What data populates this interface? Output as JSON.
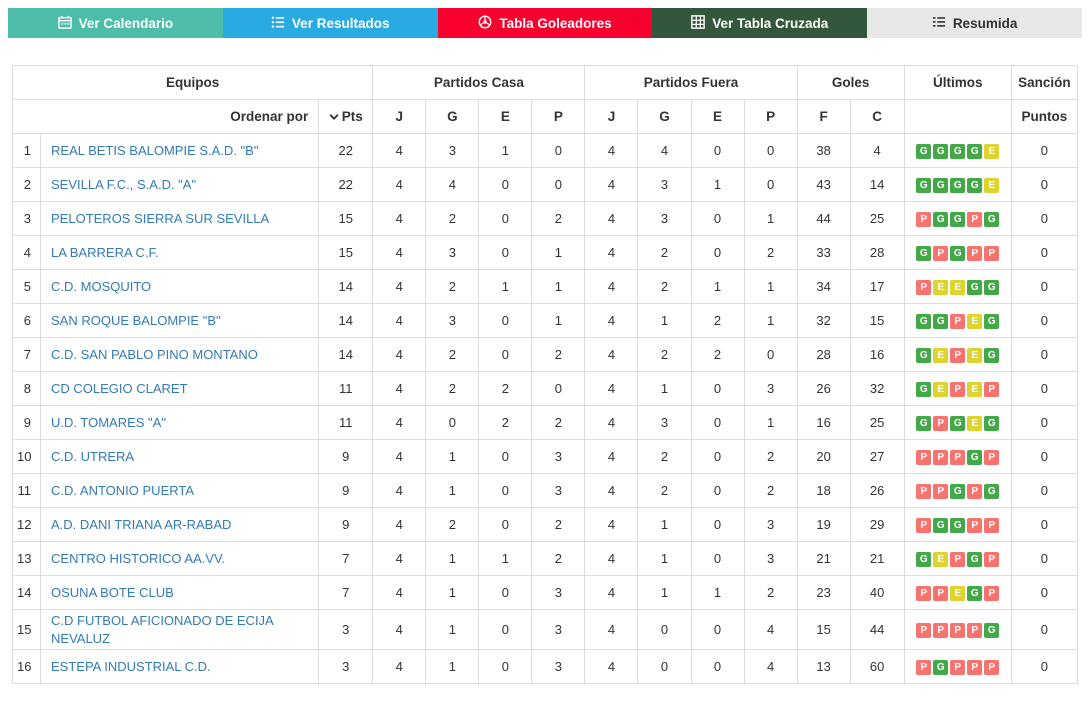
{
  "nav": {
    "buttons": [
      {
        "label": "Ver Calendario",
        "icon": "calendar-icon",
        "color": "#4dbca8",
        "text_color": "#ffffff"
      },
      {
        "label": "Ver Resultados",
        "icon": "list-icon",
        "color": "#29abe2",
        "text_color": "#ffffff"
      },
      {
        "label": "Tabla Goleadores",
        "icon": "ball-icon",
        "color": "#f8002e",
        "text_color": "#ffffff"
      },
      {
        "label": "Ver Tabla Cruzada",
        "icon": "grid-icon",
        "color": "#33573d",
        "text_color": "#ffffff"
      },
      {
        "label": "Resumida",
        "icon": "summary-icon",
        "color": "#e8e8e8",
        "text_color": "#333333"
      }
    ]
  },
  "table": {
    "group_headers": {
      "equipos": "Equipos",
      "casa": "Partidos Casa",
      "fuera": "Partidos Fuera",
      "goles": "Goles",
      "ultimos": "Últimos",
      "sancion": "Sanción"
    },
    "sub_headers": {
      "ordenar": "Ordenar por",
      "pts": "Pts",
      "j": "J",
      "g": "G",
      "e": "E",
      "p": "P",
      "f": "F",
      "c": "C",
      "puntos": "Puntos"
    },
    "badge_colors": {
      "G": "#43a847",
      "E": "#ddd431",
      "P": "#f8736e"
    },
    "rows": [
      {
        "pos": 1,
        "team": "REAL BETIS BALOMPIE S.A.D. \"B\"",
        "pts": 22,
        "casa": [
          4,
          3,
          1,
          0
        ],
        "fuera": [
          4,
          4,
          0,
          0
        ],
        "f": 38,
        "c": 4,
        "ultimos": [
          "G",
          "G",
          "G",
          "G",
          "E"
        ],
        "sancion": 0
      },
      {
        "pos": 2,
        "team": "SEVILLA F.C., S.A.D. \"A\"",
        "pts": 22,
        "casa": [
          4,
          4,
          0,
          0
        ],
        "fuera": [
          4,
          3,
          1,
          0
        ],
        "f": 43,
        "c": 14,
        "ultimos": [
          "G",
          "G",
          "G",
          "G",
          "E"
        ],
        "sancion": 0
      },
      {
        "pos": 3,
        "team": "PELOTEROS SIERRA SUR SEVILLA",
        "pts": 15,
        "casa": [
          4,
          2,
          0,
          2
        ],
        "fuera": [
          4,
          3,
          0,
          1
        ],
        "f": 44,
        "c": 25,
        "ultimos": [
          "P",
          "G",
          "G",
          "P",
          "G"
        ],
        "sancion": 0
      },
      {
        "pos": 4,
        "team": "LA BARRERA C.F.",
        "pts": 15,
        "casa": [
          4,
          3,
          0,
          1
        ],
        "fuera": [
          4,
          2,
          0,
          2
        ],
        "f": 33,
        "c": 28,
        "ultimos": [
          "G",
          "P",
          "G",
          "P",
          "P"
        ],
        "sancion": 0
      },
      {
        "pos": 5,
        "team": "C.D. MOSQUITO",
        "pts": 14,
        "casa": [
          4,
          2,
          1,
          1
        ],
        "fuera": [
          4,
          2,
          1,
          1
        ],
        "f": 34,
        "c": 17,
        "ultimos": [
          "P",
          "E",
          "E",
          "G",
          "G"
        ],
        "sancion": 0
      },
      {
        "pos": 6,
        "team": "SAN ROQUE BALOMPIE \"B\"",
        "pts": 14,
        "casa": [
          4,
          3,
          0,
          1
        ],
        "fuera": [
          4,
          1,
          2,
          1
        ],
        "f": 32,
        "c": 15,
        "ultimos": [
          "G",
          "G",
          "P",
          "E",
          "G"
        ],
        "sancion": 0
      },
      {
        "pos": 7,
        "team": "C.D. SAN PABLO PINO MONTANO",
        "pts": 14,
        "casa": [
          4,
          2,
          0,
          2
        ],
        "fuera": [
          4,
          2,
          2,
          0
        ],
        "f": 28,
        "c": 16,
        "ultimos": [
          "G",
          "E",
          "P",
          "E",
          "G"
        ],
        "sancion": 0
      },
      {
        "pos": 8,
        "team": "CD COLEGIO CLARET",
        "pts": 11,
        "casa": [
          4,
          2,
          2,
          0
        ],
        "fuera": [
          4,
          1,
          0,
          3
        ],
        "f": 26,
        "c": 32,
        "ultimos": [
          "G",
          "E",
          "P",
          "E",
          "P"
        ],
        "sancion": 0
      },
      {
        "pos": 9,
        "team": "U.D. TOMARES \"A\"",
        "pts": 11,
        "casa": [
          4,
          0,
          2,
          2
        ],
        "fuera": [
          4,
          3,
          0,
          1
        ],
        "f": 16,
        "c": 25,
        "ultimos": [
          "G",
          "P",
          "G",
          "E",
          "G"
        ],
        "sancion": 0
      },
      {
        "pos": 10,
        "team": "C.D. UTRERA",
        "pts": 9,
        "casa": [
          4,
          1,
          0,
          3
        ],
        "fuera": [
          4,
          2,
          0,
          2
        ],
        "f": 20,
        "c": 27,
        "ultimos": [
          "P",
          "P",
          "P",
          "G",
          "P"
        ],
        "sancion": 0
      },
      {
        "pos": 11,
        "team": "C.D. ANTONIO PUERTA",
        "pts": 9,
        "casa": [
          4,
          1,
          0,
          3
        ],
        "fuera": [
          4,
          2,
          0,
          2
        ],
        "f": 18,
        "c": 26,
        "ultimos": [
          "P",
          "P",
          "G",
          "P",
          "G"
        ],
        "sancion": 0
      },
      {
        "pos": 12,
        "team": "A.D. DANI TRIANA AR-RABAD",
        "pts": 9,
        "casa": [
          4,
          2,
          0,
          2
        ],
        "fuera": [
          4,
          1,
          0,
          3
        ],
        "f": 19,
        "c": 29,
        "ultimos": [
          "P",
          "G",
          "G",
          "P",
          "P"
        ],
        "sancion": 0
      },
      {
        "pos": 13,
        "team": "CENTRO HISTORICO AA.VV.",
        "pts": 7,
        "casa": [
          4,
          1,
          1,
          2
        ],
        "fuera": [
          4,
          1,
          0,
          3
        ],
        "f": 21,
        "c": 21,
        "ultimos": [
          "G",
          "E",
          "P",
          "G",
          "P"
        ],
        "sancion": 0
      },
      {
        "pos": 14,
        "team": "OSUNA BOTE CLUB",
        "pts": 7,
        "casa": [
          4,
          1,
          0,
          3
        ],
        "fuera": [
          4,
          1,
          1,
          2
        ],
        "f": 23,
        "c": 40,
        "ultimos": [
          "P",
          "P",
          "E",
          "G",
          "P"
        ],
        "sancion": 0
      },
      {
        "pos": 15,
        "team": "C.D FUTBOL AFICIONADO DE ECIJA NEVALUZ",
        "pts": 3,
        "casa": [
          4,
          1,
          0,
          3
        ],
        "fuera": [
          4,
          0,
          0,
          4
        ],
        "f": 15,
        "c": 44,
        "ultimos": [
          "P",
          "P",
          "P",
          "P",
          "G"
        ],
        "sancion": 0
      },
      {
        "pos": 16,
        "team": "ESTEPA INDUSTRIAL C.D.",
        "pts": 3,
        "casa": [
          4,
          1,
          0,
          3
        ],
        "fuera": [
          4,
          0,
          0,
          4
        ],
        "f": 13,
        "c": 60,
        "ultimos": [
          "P",
          "G",
          "P",
          "P",
          "P"
        ],
        "sancion": 0
      }
    ]
  }
}
